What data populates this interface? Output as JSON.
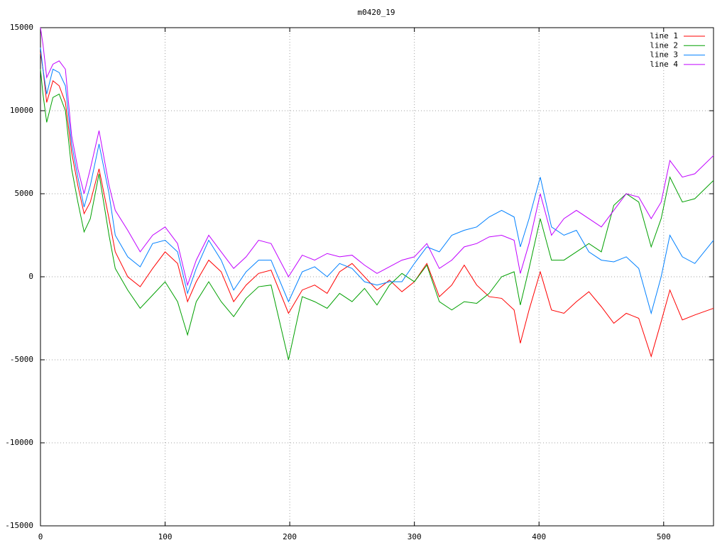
{
  "chart_data": {
    "type": "line",
    "title": "m0420_19",
    "x": [
      0,
      2,
      5,
      10,
      15,
      20,
      25,
      30,
      35,
      40,
      47,
      55,
      60,
      70,
      80,
      90,
      100,
      110,
      118,
      125,
      135,
      145,
      155,
      165,
      175,
      185,
      199,
      210,
      220,
      230,
      240,
      250,
      260,
      270,
      280,
      290,
      300,
      310,
      320,
      330,
      340,
      350,
      360,
      370,
      380,
      385,
      392,
      401,
      410,
      420,
      430,
      440,
      450,
      460,
      470,
      480,
      490,
      498,
      505,
      515,
      525,
      540
    ],
    "series": [
      {
        "name": "line 1",
        "color": "#ff0000",
        "values": [
          13500,
          12500,
          10500,
          11800,
          11500,
          10500,
          7500,
          5500,
          3800,
          4500,
          6500,
          3500,
          1500,
          0,
          -600,
          500,
          1500,
          800,
          -1500,
          -300,
          1000,
          300,
          -1500,
          -500,
          200,
          400,
          -2200,
          -800,
          -500,
          -1000,
          300,
          800,
          0,
          -800,
          -200,
          -900,
          -300,
          800,
          -1200,
          -500,
          700,
          -500,
          -1200,
          -1300,
          -2000,
          -4000,
          -2000,
          300,
          -2000,
          -2200,
          -1500,
          -900,
          -1800,
          -2800,
          -2200,
          -2500,
          -4800,
          -2700,
          -800,
          -2600,
          -2300,
          -1900
        ]
      },
      {
        "name": "line 2",
        "color": "#00a000",
        "values": [
          12500,
          11000,
          9300,
          10800,
          11000,
          10000,
          6500,
          4500,
          2700,
          3500,
          6200,
          2500,
          500,
          -800,
          -1900,
          -1100,
          -300,
          -1500,
          -3500,
          -1500,
          -300,
          -1500,
          -2400,
          -1300,
          -600,
          -500,
          -5000,
          -1200,
          -1500,
          -1900,
          -1000,
          -1500,
          -700,
          -1700,
          -500,
          200,
          -300,
          700,
          -1500,
          -2000,
          -1500,
          -1600,
          -1000,
          0,
          300,
          -1700,
          500,
          3500,
          1000,
          1000,
          1500,
          2000,
          1500,
          4300,
          5000,
          4500,
          1800,
          3500,
          6000,
          4500,
          4700,
          5800
        ]
      },
      {
        "name": "line 3",
        "color": "#0080ff",
        "values": [
          13800,
          12500,
          11000,
          12500,
          12300,
          11500,
          8000,
          6000,
          4200,
          5500,
          8000,
          5000,
          2500,
          1200,
          600,
          2000,
          2200,
          1500,
          -1000,
          500,
          2200,
          1000,
          -800,
          300,
          1000,
          1000,
          -1500,
          300,
          600,
          0,
          800,
          500,
          -300,
          -500,
          -300,
          -300,
          800,
          1800,
          1500,
          2500,
          2800,
          3000,
          3600,
          4000,
          3600,
          1800,
          3500,
          6000,
          3000,
          2500,
          2800,
          1500,
          1000,
          900,
          1200,
          500,
          -2200,
          0,
          2500,
          1200,
          800,
          2200
        ]
      },
      {
        "name": "line 4",
        "color": "#c000ff",
        "values": [
          15000,
          14000,
          12000,
          12800,
          13000,
          12500,
          8500,
          6500,
          5000,
          6500,
          8800,
          5500,
          4000,
          2800,
          1500,
          2500,
          3000,
          2000,
          -500,
          1000,
          2500,
          1500,
          500,
          1200,
          2200,
          2000,
          0,
          1300,
          1000,
          1400,
          1200,
          1300,
          700,
          200,
          600,
          1000,
          1200,
          2000,
          500,
          1000,
          1800,
          2000,
          2400,
          2500,
          2200,
          200,
          2000,
          5000,
          2500,
          3500,
          4000,
          3500,
          3000,
          4000,
          5000,
          4800,
          3500,
          4500,
          7000,
          6000,
          6200,
          7300
        ]
      }
    ],
    "xlim": [
      0,
      540
    ],
    "xticks": [
      0,
      100,
      200,
      300,
      400,
      500
    ],
    "ylim": [
      -15000,
      15000
    ],
    "yticks": [
      -15000,
      -10000,
      -5000,
      0,
      5000,
      10000,
      15000
    ],
    "grid": true,
    "legend": "top-right"
  }
}
